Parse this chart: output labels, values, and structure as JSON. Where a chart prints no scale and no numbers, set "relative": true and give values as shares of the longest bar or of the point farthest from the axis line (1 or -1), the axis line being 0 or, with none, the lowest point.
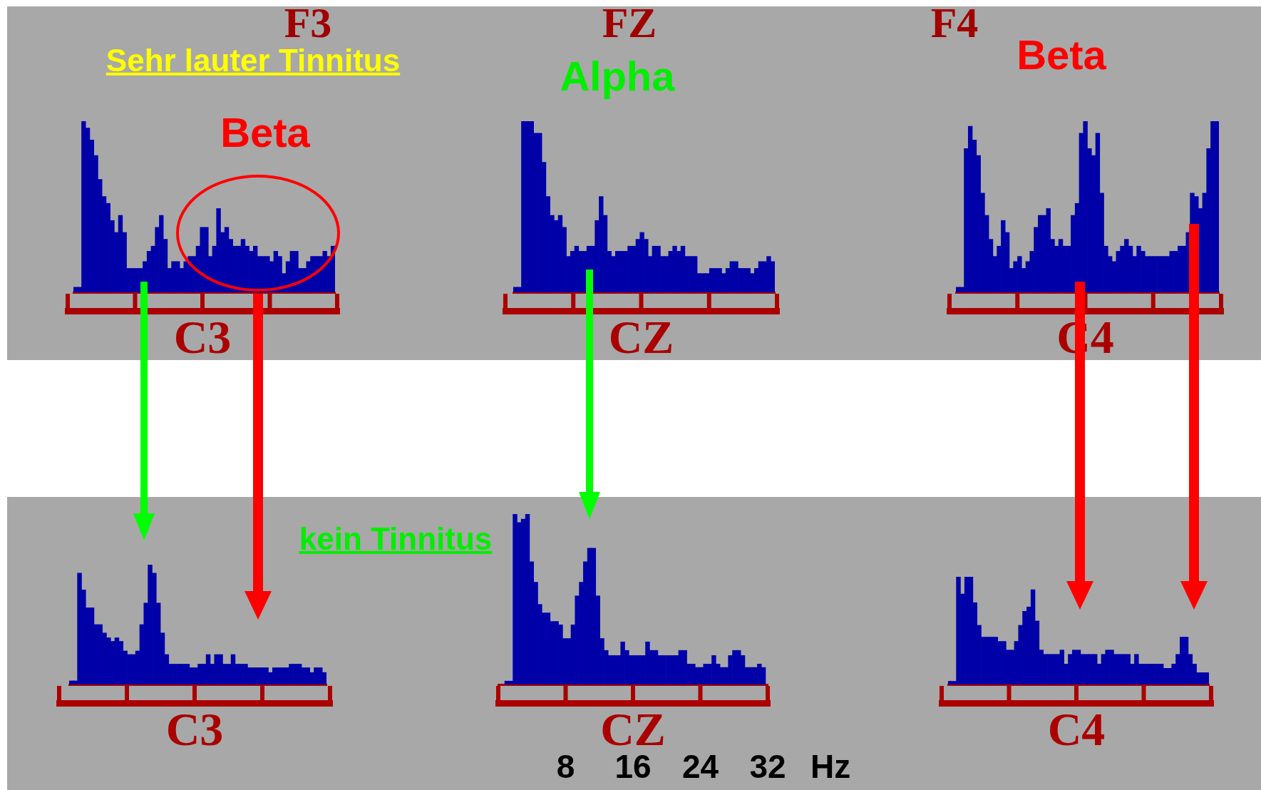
{
  "chart_data": [
    {
      "type": "bar",
      "title": "C3",
      "color": "#0000a8",
      "relative": true,
      "annotations": [
        "F3",
        "Sehr lauter Tinnitus",
        "Beta"
      ],
      "categories": [
        null,
        null,
        null,
        null,
        null,
        null,
        null,
        null,
        null,
        null,
        null,
        null,
        null,
        null,
        null,
        null,
        null,
        null,
        null,
        null,
        null,
        null,
        null,
        null,
        null,
        null,
        null,
        null,
        null,
        null,
        null,
        null,
        null,
        null,
        null,
        null,
        null,
        null,
        null,
        null,
        null,
        null,
        null,
        null,
        null,
        null,
        null,
        null,
        null,
        null,
        null,
        null,
        null,
        null,
        null,
        null,
        null,
        null,
        null,
        null,
        null,
        null,
        null,
        null
      ],
      "values": [
        0.03,
        0.03,
        1,
        0.96,
        0.89,
        0.8,
        0.66,
        0.56,
        0.52,
        0.42,
        0.35,
        0.45,
        0.35,
        0.14,
        0.14,
        0.14,
        0.14,
        0.18,
        0.24,
        0.27,
        0.38,
        0.45,
        0.31,
        0.14,
        0.18,
        0.18,
        0.14,
        0.18,
        0.21,
        0.21,
        0.27,
        0.38,
        0.38,
        0.21,
        0.27,
        0.49,
        0.35,
        0.38,
        0.31,
        0.27,
        0.27,
        0.31,
        0.27,
        0.24,
        0.27,
        0.21,
        0.21,
        0.21,
        0.18,
        0.24,
        0.21,
        0.11,
        0.18,
        0.24,
        0.24,
        0.14,
        0.14,
        0.18,
        0.21,
        0.21,
        0.21,
        0.24,
        0.21,
        0.27
      ]
    },
    {
      "type": "bar",
      "title": "CZ",
      "color": "#0000a8",
      "relative": true,
      "annotations": [
        "FZ",
        "Alpha"
      ],
      "categories": [
        null,
        null,
        null,
        null,
        null,
        null,
        null,
        null,
        null,
        null,
        null,
        null,
        null,
        null,
        null,
        null,
        null,
        null,
        null,
        null,
        null,
        null,
        null,
        null,
        null,
        null,
        null,
        null,
        null,
        null,
        null,
        null,
        null,
        null,
        null,
        null,
        null,
        null,
        null,
        null,
        null,
        null,
        null,
        null,
        null,
        null,
        null,
        null,
        null,
        null,
        null,
        null,
        null,
        null,
        null,
        null,
        null,
        null,
        null,
        null,
        null,
        null,
        null,
        null
      ],
      "values": [
        0.03,
        0.03,
        1,
        1,
        1,
        0.93,
        0.93,
        0.76,
        0.56,
        0.45,
        0.42,
        0.45,
        0.38,
        0.21,
        0.24,
        0.27,
        0.24,
        0.24,
        0.27,
        0.27,
        0.42,
        0.56,
        0.45,
        0.24,
        0.21,
        0.24,
        0.24,
        0.24,
        0.27,
        0.27,
        0.31,
        0.35,
        0.31,
        0.21,
        0.27,
        0.27,
        0.21,
        0.21,
        0.24,
        0.27,
        0.24,
        0.27,
        0.21,
        0.21,
        0.21,
        0.11,
        0.11,
        0.11,
        0.14,
        0.14,
        0.14,
        0.11,
        0.14,
        0.18,
        0.18,
        0.14,
        0.14,
        0.14,
        0.11,
        0.14,
        0.18,
        0.18,
        0.21,
        0.18
      ]
    },
    {
      "type": "bar",
      "title": "C4",
      "color": "#0000a8",
      "relative": true,
      "annotations": [
        "F4",
        "Beta"
      ],
      "categories": [
        null,
        null,
        null,
        null,
        null,
        null,
        null,
        null,
        null,
        null,
        null,
        null,
        null,
        null,
        null,
        null,
        null,
        null,
        null,
        null,
        null,
        null,
        null,
        null,
        null,
        null,
        null,
        null,
        null,
        null,
        null,
        null,
        null,
        null,
        null,
        null,
        null,
        null,
        null,
        null,
        null,
        null,
        null,
        null,
        null,
        null,
        null,
        null,
        null,
        null,
        null,
        null,
        null,
        null,
        null,
        null,
        null,
        null,
        null,
        null,
        null,
        null,
        null,
        null
      ],
      "values": [
        0.03,
        0.03,
        0.84,
        0.97,
        0.89,
        0.8,
        0.58,
        0.45,
        0.31,
        0.21,
        0.27,
        0.42,
        0.35,
        0.14,
        0.18,
        0.21,
        0.14,
        0.18,
        0.24,
        0.38,
        0.45,
        0.45,
        0.49,
        0.31,
        0.27,
        0.31,
        0.27,
        0.27,
        0.45,
        0.52,
        0.93,
        1,
        0.84,
        0.8,
        0.93,
        0.58,
        0.27,
        0.21,
        0.18,
        0.24,
        0.27,
        0.31,
        0.27,
        0.21,
        0.27,
        0.24,
        0.21,
        0.21,
        0.21,
        0.21,
        0.21,
        0.21,
        0.24,
        0.24,
        0.27,
        0.27,
        0.35,
        0.58,
        0.56,
        0.49,
        0.58,
        0.84,
        1,
        1
      ]
    },
    {
      "type": "bar",
      "title": "C3",
      "color": "#0000a8",
      "relative": true,
      "annotations": [
        "kein Tinnitus"
      ],
      "categories": [
        null,
        null,
        null,
        null,
        null,
        null,
        null,
        null,
        null,
        null,
        null,
        null,
        null,
        null,
        null,
        null,
        null,
        null,
        null,
        null,
        null,
        null,
        null,
        null,
        null,
        null,
        null,
        null,
        null,
        null,
        null,
        null,
        null,
        null,
        null,
        null,
        null,
        null,
        null,
        null,
        null,
        null,
        null,
        null,
        null,
        null,
        null,
        null,
        null,
        null,
        null,
        null,
        null,
        null,
        null,
        null,
        null,
        null,
        null,
        null,
        null,
        null
      ],
      "values": [
        0.03,
        0.03,
        0.93,
        0.79,
        0.64,
        0.64,
        0.5,
        0.5,
        0.43,
        0.39,
        0.36,
        0.39,
        0.36,
        0.28,
        0.25,
        0.25,
        0.28,
        0.5,
        0.68,
        1,
        0.93,
        0.68,
        0.43,
        0.25,
        0.17,
        0.17,
        0.17,
        0.17,
        0.17,
        0.14,
        0.14,
        0.17,
        0.17,
        0.25,
        0.17,
        0.25,
        0.25,
        0.17,
        0.17,
        0.25,
        0.17,
        0.17,
        0.17,
        0.14,
        0.14,
        0.14,
        0.14,
        0.14,
        0.1,
        0.14,
        0.14,
        0.14,
        0.14,
        0.17,
        0.17,
        0.17,
        0.14,
        0.14,
        0.1,
        0.14,
        0.14,
        0.1
      ]
    },
    {
      "type": "bar",
      "title": "CZ",
      "xlabel": "Hz",
      "color": "#0000a8",
      "relative": true,
      "xlim": [
        0,
        32
      ],
      "xticks": [
        8,
        16,
        24,
        32
      ],
      "tick_labels": "x",
      "x": [
        1.01,
        1.5,
        1.99,
        2.48,
        2.97,
        3.47,
        3.96,
        4.45,
        4.94,
        5.43,
        5.92,
        6.42,
        6.91,
        7.4,
        7.89,
        8.38,
        8.88,
        9.37,
        9.86,
        10.35,
        10.84,
        11.33,
        11.83,
        12.32,
        12.81,
        13.3,
        13.79,
        14.29,
        14.78,
        15.27,
        15.76,
        16.25,
        16.74,
        17.24,
        17.73,
        18.22,
        18.71,
        19.2,
        19.69,
        20.19,
        20.68,
        21.17,
        21.66,
        22.15,
        22.65,
        23.14,
        23.63,
        24.12,
        24.61,
        25.1,
        25.6,
        26.09,
        26.58,
        27.07,
        27.56,
        28.06,
        28.55,
        29.04,
        29.53,
        30.02,
        30.51,
        31.01,
        31.5
      ],
      "values": [
        0.02,
        0.02,
        1,
        0.95,
        0.97,
        1,
        0.72,
        0.6,
        0.47,
        0.42,
        0.42,
        0.37,
        0.37,
        0.35,
        0.27,
        0.27,
        0.35,
        0.52,
        0.6,
        0.72,
        0.8,
        0.8,
        0.52,
        0.27,
        0.2,
        0.17,
        0.17,
        0.17,
        0.25,
        0.2,
        0.17,
        0.17,
        0.17,
        0.17,
        0.25,
        0.2,
        0.2,
        0.17,
        0.17,
        0.17,
        0.17,
        0.17,
        0.2,
        0.2,
        0.12,
        0.12,
        0.1,
        0.1,
        0.12,
        0.12,
        0.17,
        0.12,
        0.1,
        0.1,
        0.17,
        0.2,
        0.2,
        0.17,
        0.1,
        0.1,
        0.1,
        0.12,
        0.1
      ]
    },
    {
      "type": "bar",
      "title": "C4",
      "color": "#0000a8",
      "relative": true,
      "categories": [
        null,
        null,
        null,
        null,
        null,
        null,
        null,
        null,
        null,
        null,
        null,
        null,
        null,
        null,
        null,
        null,
        null,
        null,
        null,
        null,
        null,
        null,
        null,
        null,
        null,
        null,
        null,
        null,
        null,
        null,
        null,
        null,
        null,
        null,
        null,
        null,
        null,
        null,
        null,
        null,
        null,
        null,
        null,
        null,
        null,
        null,
        null,
        null,
        null,
        null,
        null,
        null,
        null,
        null,
        null,
        null,
        null,
        null,
        null,
        null,
        null,
        null,
        null
      ],
      "values": [
        0.03,
        0.03,
        1,
        0.84,
        1,
        1,
        0.76,
        0.55,
        0.44,
        0.44,
        0.44,
        0.44,
        0.4,
        0.4,
        0.32,
        0.32,
        0.4,
        0.55,
        0.68,
        0.72,
        0.88,
        0.59,
        0.32,
        0.28,
        0.28,
        0.28,
        0.28,
        0.32,
        0.19,
        0.28,
        0.32,
        0.32,
        0.28,
        0.28,
        0.28,
        0.28,
        0.19,
        0.28,
        0.32,
        0.32,
        0.28,
        0.28,
        0.28,
        0.28,
        0.19,
        0.28,
        0.19,
        0.19,
        0.19,
        0.19,
        0.19,
        0.19,
        0.15,
        0.15,
        0.19,
        0.28,
        0.44,
        0.44,
        0.28,
        0.19,
        0.11,
        0.11,
        0.11
      ]
    }
  ]
}
